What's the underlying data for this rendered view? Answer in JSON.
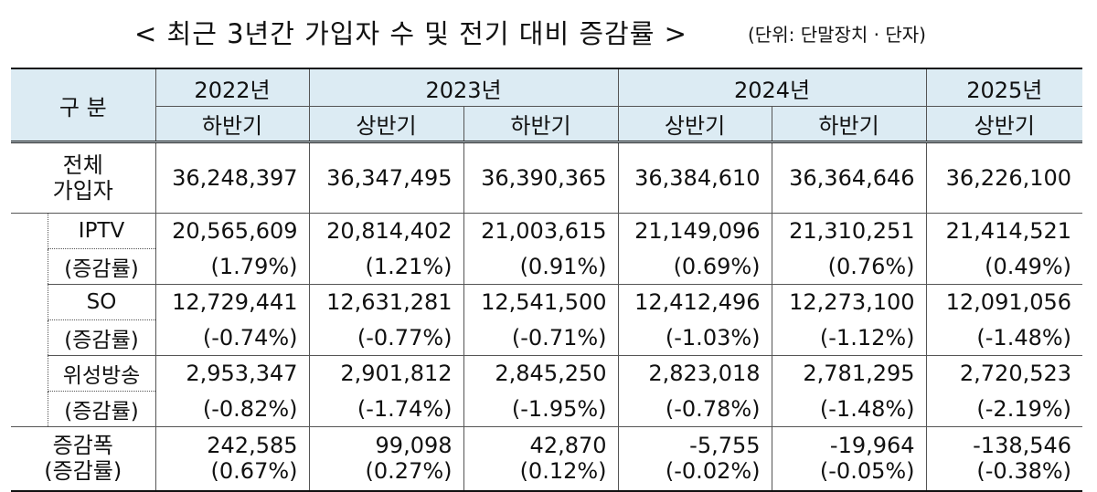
{
  "title": {
    "main": "< 최근 3년간 가입자 수 및 전기 대비 증감률 >",
    "unit": "(단위: 단말장치 · 단자)"
  },
  "header": {
    "category": "구 분",
    "years": [
      {
        "label": "2022년"
      },
      {
        "label": "2023년"
      },
      {
        "label": "2024년"
      },
      {
        "label": "2025년"
      }
    ],
    "halves": [
      "하반기",
      "상반기",
      "하반기",
      "상반기",
      "하반기",
      "상반기"
    ]
  },
  "rows": {
    "total": {
      "label_line1": "전체",
      "label_line2": "가입자",
      "values": [
        "36,248,397",
        "36,347,495",
        "36,390,365",
        "36,384,610",
        "36,364,646",
        "36,226,100"
      ]
    },
    "iptv": {
      "label": "IPTV",
      "rate_label": "(증감률)",
      "values": [
        "20,565,609",
        "20,814,402",
        "21,003,615",
        "21,149,096",
        "21,310,251",
        "21,414,521"
      ],
      "rates": [
        "(1.79%)",
        "(1.21%)",
        "(0.91%)",
        "(0.69%)",
        "(0.76%)",
        "(0.49%)"
      ]
    },
    "so": {
      "label": "SO",
      "rate_label": "(증감률)",
      "values": [
        "12,729,441",
        "12,631,281",
        "12,541,500",
        "12,412,496",
        "12,273,100",
        "12,091,056"
      ],
      "rates": [
        "(-0.74%)",
        "(-0.77%)",
        "(-0.71%)",
        "(-1.03%)",
        "(-1.12%)",
        "(-1.48%)"
      ]
    },
    "satellite": {
      "label": "위성방송",
      "rate_label": "(증감률)",
      "values": [
        "2,953,347",
        "2,901,812",
        "2,845,250",
        "2,823,018",
        "2,781,295",
        "2,720,523"
      ],
      "rates": [
        "(-0.82%)",
        "(-1.74%)",
        "(-1.95%)",
        "(-0.78%)",
        "(-1.48%)",
        "(-2.19%)"
      ]
    },
    "change": {
      "label_line1": "증감폭",
      "label_line2": "(증감률)",
      "values": [
        "242,585",
        "99,098",
        "42,870",
        "-5,755",
        "-19,964",
        "-138,546"
      ],
      "rates": [
        "(0.67%)",
        "(0.27%)",
        "(0.12%)",
        "(-0.02%)",
        "(-0.05%)",
        "(-0.38%)"
      ]
    }
  }
}
